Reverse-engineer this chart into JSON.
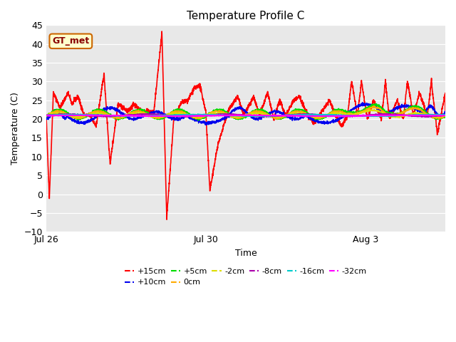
{
  "title": "Temperature Profile C",
  "xlabel": "Time",
  "ylabel": "Temperature (C)",
  "ylim": [
    -10,
    45
  ],
  "yticks": [
    -10,
    -5,
    0,
    5,
    10,
    15,
    20,
    25,
    30,
    35,
    40,
    45
  ],
  "xlim_days": [
    0,
    10
  ],
  "x_tick_labels": [
    "Jul 26",
    "Jul 30",
    "Aug 3"
  ],
  "x_tick_positions": [
    0,
    4,
    8
  ],
  "fig_bg_color": "#ffffff",
  "plot_bg_color": "#e8e8e8",
  "grid_color": "#ffffff",
  "series": [
    {
      "label": "+15cm",
      "color": "#ff0000",
      "lw": 1.2
    },
    {
      "label": "+10cm",
      "color": "#0000ee",
      "lw": 1.0
    },
    {
      "label": "+5cm",
      "color": "#00dd00",
      "lw": 1.0
    },
    {
      "label": "0cm",
      "color": "#ffaa00",
      "lw": 1.0
    },
    {
      "label": "-2cm",
      "color": "#dddd00",
      "lw": 1.0
    },
    {
      "label": "-8cm",
      "color": "#aa00aa",
      "lw": 1.0
    },
    {
      "label": "-16cm",
      "color": "#00cccc",
      "lw": 1.0
    },
    {
      "label": "-32cm",
      "color": "#ff00ff",
      "lw": 1.2
    }
  ],
  "legend_label": "GT_met",
  "legend_bg": "#ffffcc",
  "legend_border": "#cc6600",
  "title_fontsize": 11,
  "axis_fontsize": 9,
  "tick_fontsize": 9
}
